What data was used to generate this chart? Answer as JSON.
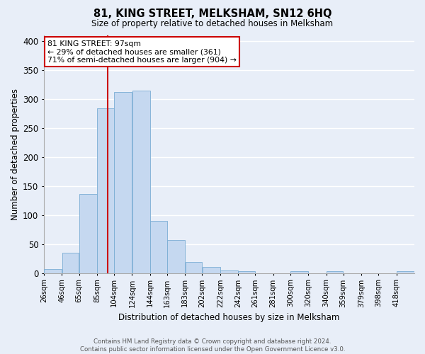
{
  "title": "81, KING STREET, MELKSHAM, SN12 6HQ",
  "subtitle": "Size of property relative to detached houses in Melksham",
  "xlabel": "Distribution of detached houses by size in Melksham",
  "ylabel": "Number of detached properties",
  "bin_labels": [
    "26sqm",
    "46sqm",
    "65sqm",
    "85sqm",
    "104sqm",
    "124sqm",
    "144sqm",
    "163sqm",
    "183sqm",
    "202sqm",
    "222sqm",
    "242sqm",
    "261sqm",
    "281sqm",
    "300sqm",
    "320sqm",
    "340sqm",
    "359sqm",
    "379sqm",
    "398sqm",
    "418sqm"
  ],
  "bar_heights": [
    7,
    35,
    136,
    284,
    312,
    315,
    90,
    57,
    19,
    10,
    4,
    3,
    0,
    0,
    3,
    0,
    3,
    0,
    0,
    0,
    3
  ],
  "bar_color": "#c5d8f0",
  "bar_edge_color": "#7aadd4",
  "vline_x": 97,
  "vline_color": "#cc0000",
  "ylim": [
    0,
    410
  ],
  "yticks": [
    0,
    50,
    100,
    150,
    200,
    250,
    300,
    350,
    400
  ],
  "annotation_title": "81 KING STREET: 97sqm",
  "annotation_line1": "← 29% of detached houses are smaller (361)",
  "annotation_line2": "71% of semi-detached houses are larger (904) →",
  "annotation_box_color": "#cc0000",
  "footer_line1": "Contains HM Land Registry data © Crown copyright and database right 2024.",
  "footer_line2": "Contains public sector information licensed under the Open Government Licence v3.0.",
  "bg_color": "#e8eef8",
  "grid_color": "#ffffff"
}
